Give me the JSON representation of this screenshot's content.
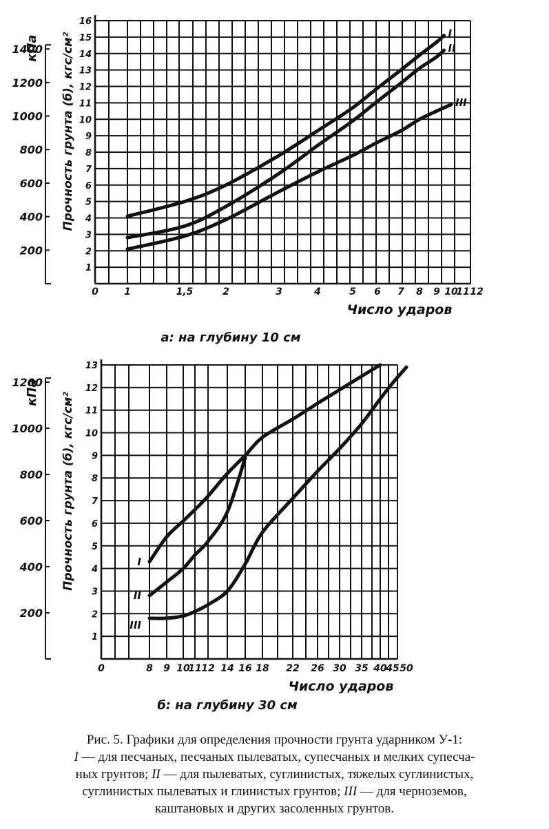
{
  "chart_data": [
    {
      "type": "line",
      "title": "",
      "subtitle": "а: на глубину 10 см",
      "xlabel": "Число ударов",
      "ylabel": "Прочность грунта (б), кгс/см²",
      "y2label": "кПа",
      "x_tick_labels": [
        "0",
        "1",
        "1,5",
        "2",
        "3",
        "4",
        "5",
        "6",
        "7",
        "8",
        "9",
        "10",
        "11",
        "12"
      ],
      "y_tick_labels": [
        "1",
        "2",
        "3",
        "4",
        "5",
        "6",
        "7",
        "8",
        "9",
        "10",
        "11",
        "12",
        "13",
        "14",
        "15",
        "16"
      ],
      "y2_tick_labels": [
        "200",
        "400",
        "600",
        "800",
        "1000",
        "1200",
        "1400"
      ],
      "ylim": [
        0,
        16
      ],
      "grid": true,
      "series": [
        {
          "name": "I",
          "x": [
            1,
            1.5,
            2,
            3,
            4,
            5,
            6,
            7,
            8,
            9,
            9.5
          ],
          "y": [
            4.1,
            5.0,
            6.0,
            7.8,
            9.3,
            10.7,
            11.9,
            13.0,
            13.9,
            14.7,
            15.1
          ]
        },
        {
          "name": "II",
          "x": [
            1,
            1.5,
            2,
            3,
            4,
            5,
            6,
            7,
            8,
            9,
            9.5
          ],
          "y": [
            2.8,
            3.5,
            4.7,
            6.7,
            8.4,
            9.9,
            11.1,
            12.2,
            13.1,
            13.8,
            14.2
          ]
        },
        {
          "name": "III",
          "x": [
            1,
            1.5,
            2,
            3,
            4,
            5,
            6,
            7,
            8,
            9,
            10
          ],
          "y": [
            2.1,
            2.9,
            3.9,
            5.6,
            6.8,
            7.8,
            8.6,
            9.3,
            10.0,
            10.5,
            10.9
          ]
        }
      ]
    },
    {
      "type": "line",
      "title": "",
      "subtitle": "б: на глубину 30 см",
      "xlabel": "Число ударов",
      "ylabel": "Прочность грунта (б), кгс/см²",
      "y2label": "кПа",
      "x_tick_labels": [
        "0",
        "8",
        "9",
        "10",
        "11",
        "12",
        "14",
        "16",
        "18",
        "22",
        "26",
        "30",
        "35",
        "40",
        "45",
        "50"
      ],
      "y_tick_labels": [
        "1",
        "2",
        "3",
        "4",
        "5",
        "6",
        "7",
        "8",
        "9",
        "10",
        "11",
        "12",
        "13"
      ],
      "y2_tick_labels": [
        "200",
        "400",
        "600",
        "800",
        "1000",
        "1200"
      ],
      "ylim": [
        0,
        13
      ],
      "grid": true,
      "series": [
        {
          "name": "I",
          "x": [
            8,
            9,
            10,
            11,
            12,
            14,
            16,
            18,
            22,
            26,
            30,
            35,
            40
          ],
          "y": [
            4.3,
            5.4,
            6.1,
            6.6,
            7.2,
            8.2,
            9.0,
            9.8,
            10.6,
            11.3,
            11.9,
            12.5,
            13.0
          ]
        },
        {
          "name": "II",
          "x": [
            8,
            9,
            10,
            11,
            12,
            14,
            16
          ],
          "y": [
            2.8,
            3.4,
            4.0,
            4.6,
            5.2,
            6.5,
            8.9
          ]
        },
        {
          "name": "III",
          "x": [
            8,
            9,
            10,
            11,
            12,
            14,
            16,
            18,
            22,
            26,
            30,
            35,
            40,
            45,
            50
          ],
          "y": [
            1.8,
            1.8,
            1.9,
            2.1,
            2.4,
            3.0,
            4.2,
            5.6,
            7.1,
            8.3,
            9.3,
            10.4,
            11.5,
            12.2,
            12.9
          ]
        }
      ]
    }
  ],
  "caption": {
    "line1": "Рис. 5. Графики для определения прочности грунта ударником У-1:",
    "line2_r1": "I",
    "line2_t1": " — для песчаных, песчаных пылеватых, супесчаных и мелких супесча-",
    "line3_t1": "ных грунтов; ",
    "line3_r2": "II",
    "line3_t2": " — для пылеватых, суглинистых, тяжелых суглинистых,",
    "line4_t1": "суглинистых пылеватых и глинистых грунтов; ",
    "line4_r3": "III",
    "line4_t2": " — для черноземов,",
    "line5": "каштановых и других засоленных грунтов."
  }
}
